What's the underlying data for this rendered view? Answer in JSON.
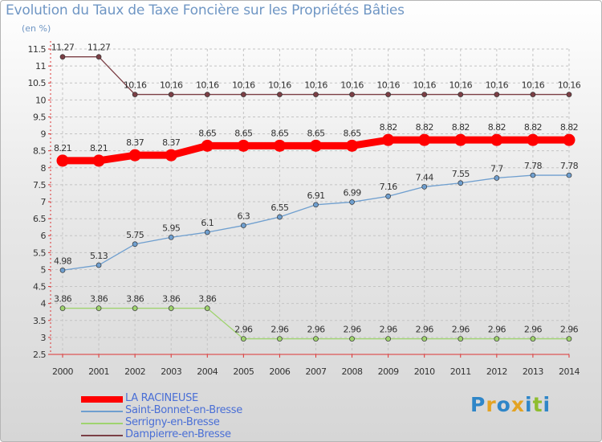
{
  "title": "Evolution du Taux de Taxe Foncière sur les Propriétés Bâties",
  "unit_label": "(en %)",
  "logo": {
    "text": "Proxiti",
    "colors": [
      "#2f86c8",
      "#e3a323",
      "#2f86c8",
      "#e3a323",
      "#2f86c8",
      "#8ebd2f",
      "#2f86c8"
    ]
  },
  "chart_data": {
    "type": "line",
    "title": "Evolution du Taux de Taxe Foncière sur les Propriétés Bâties",
    "ylabel": "(en %)",
    "xlabel": "",
    "x": [
      "2000",
      "2001",
      "2002",
      "2003",
      "2004",
      "2005",
      "2006",
      "2007",
      "2008",
      "2009",
      "2010",
      "2011",
      "2012",
      "2013",
      "2014"
    ],
    "ylim": [
      2.5,
      11.5
    ],
    "yticks": [
      "2.5",
      "3",
      "3.5",
      "4",
      "4.5",
      "5",
      "5.5",
      "6",
      "6.5",
      "7",
      "7.5",
      "8",
      "8.5",
      "9",
      "9.5",
      "10",
      "10.5",
      "11",
      "11.5"
    ],
    "grid": true,
    "legend_position": "bottom-left",
    "series": [
      {
        "name": "LA RACINEUSE",
        "color": "#ff0000",
        "values": [
          8.21,
          8.21,
          8.37,
          8.37,
          8.65,
          8.65,
          8.65,
          8.65,
          8.65,
          8.82,
          8.82,
          8.82,
          8.82,
          8.82,
          8.82
        ]
      },
      {
        "name": "Saint-Bonnet-en-Bresse",
        "color": "#6f9fcf",
        "values": [
          4.98,
          5.13,
          5.75,
          5.95,
          6.1,
          6.3,
          6.55,
          6.91,
          6.99,
          7.16,
          7.44,
          7.55,
          7.7,
          7.78,
          7.78
        ]
      },
      {
        "name": "Serrigny-en-Bresse",
        "color": "#9fd36f",
        "values": [
          3.86,
          3.86,
          3.86,
          3.86,
          3.86,
          2.96,
          2.96,
          2.96,
          2.96,
          2.96,
          2.96,
          2.96,
          2.96,
          2.96,
          2.96
        ]
      },
      {
        "name": "Dampierre-en-Bresse",
        "color": "#7b3f45",
        "values": [
          11.27,
          11.27,
          10.16,
          10.16,
          10.16,
          10.16,
          10.16,
          10.16,
          10.16,
          10.16,
          10.16,
          10.16,
          10.16,
          10.16,
          10.16
        ]
      }
    ],
    "value_labels": [
      [
        "8.21",
        "8.21",
        "8.37",
        "8.37",
        "8.65",
        "8.65",
        "8.65",
        "8.65",
        "8.65",
        "8.82",
        "8.82",
        "8.82",
        "8.82",
        "8.82",
        "8.82"
      ],
      [
        "4.98",
        "5.13",
        "5.75",
        "5.95",
        "6.1",
        "6.3",
        "6.55",
        "6.91",
        "6.99",
        "7.16",
        "7.44",
        "7.55",
        "7.7",
        "7.78",
        "7.78"
      ],
      [
        "3.86",
        "3.86",
        "3.86",
        "3.86",
        "3.86",
        "2.96",
        "2.96",
        "2.96",
        "2.96",
        "2.96",
        "2.96",
        "2.96",
        "2.96",
        "2.96",
        "2.96"
      ],
      [
        "11.27",
        "11.27",
        "10.16",
        "10.16",
        "10.16",
        "10.16",
        "10.16",
        "10.16",
        "10.16",
        "10.16",
        "10.16",
        "10.16",
        "10.16",
        "10.16",
        "10.16"
      ]
    ]
  }
}
